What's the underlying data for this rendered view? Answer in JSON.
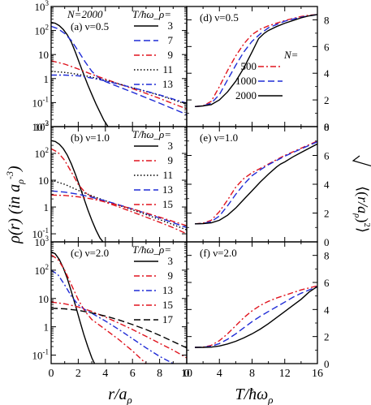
{
  "figure": {
    "left_ylabel": "ρ(r) (in a_ρ^-3)",
    "right_ylabel": "√⟨(r/a_ρ)²⟩",
    "bottom_left_xlabel": "r/a_ρ",
    "bottom_right_xlabel": "T/ħω_ρ",
    "colors": {
      "black": "#000000",
      "blue": "#1f2bd6",
      "red": "#e0141e"
    }
  },
  "chart_data": [
    {
      "id": "a",
      "type": "line",
      "yscale": "log",
      "title": "N=2000",
      "panel_label": "(a) ν=0.5",
      "xlim": [
        0,
        10
      ],
      "ylim": [
        0.01,
        1000
      ],
      "xticks": [
        0,
        2,
        4,
        6,
        8,
        10
      ],
      "legend_title": "T/ħω_ρ=",
      "legend_position": "top-right",
      "series": [
        {
          "name": "3",
          "color": "#000000",
          "dash": "solid",
          "x": [
            0,
            0.3,
            0.6,
            0.9,
            1.2,
            1.5,
            1.8,
            2.1,
            2.4,
            2.7,
            3.0,
            3.3,
            3.6,
            3.9,
            4.2,
            4.5
          ],
          "y": [
            220,
            200,
            160,
            110,
            65,
            32,
            12,
            4.2,
            1.5,
            0.55,
            0.22,
            0.09,
            0.04,
            0.018,
            0.01,
            0.007
          ]
        },
        {
          "name": "7",
          "color": "#1f2bd6",
          "dash": "dash",
          "x": [
            0,
            0.5,
            1,
            1.5,
            2,
            2.5,
            3,
            3.5,
            4,
            5,
            6,
            7,
            8,
            9,
            10
          ],
          "y": [
            150,
            120,
            75,
            38,
            14,
            5,
            2,
            1.1,
            0.75,
            0.45,
            0.27,
            0.16,
            0.095,
            0.055,
            0.032
          ]
        },
        {
          "name": "9",
          "color": "#e0141e",
          "dash": "dashdot",
          "x": [
            0,
            1,
            2,
            3,
            4,
            5,
            6,
            7,
            8,
            9,
            10
          ],
          "y": [
            5.5,
            4,
            2.5,
            1.5,
            0.95,
            0.6,
            0.38,
            0.24,
            0.15,
            0.09,
            0.055
          ]
        },
        {
          "name": "11",
          "color": "#000000",
          "dash": "dot",
          "x": [
            0,
            1,
            2,
            3,
            4,
            5,
            6,
            7,
            8,
            9,
            10
          ],
          "y": [
            2.0,
            1.8,
            1.5,
            1.15,
            0.85,
            0.6,
            0.42,
            0.29,
            0.2,
            0.13,
            0.085
          ]
        },
        {
          "name": "13",
          "color": "#1f2bd6",
          "dash": "dashdot",
          "x": [
            0,
            1,
            2,
            3,
            4,
            5,
            6,
            7,
            8,
            9,
            10
          ],
          "y": [
            1.4,
            1.4,
            1.3,
            1.05,
            0.8,
            0.58,
            0.42,
            0.3,
            0.21,
            0.14,
            0.095
          ]
        }
      ]
    },
    {
      "id": "b",
      "type": "line",
      "yscale": "log",
      "panel_label": "(b) ν=1.0",
      "xlim": [
        0,
        10
      ],
      "ylim": [
        0.05,
        1000
      ],
      "xticks": [
        0,
        2,
        4,
        6,
        8,
        10
      ],
      "legend_title": "T/ħω_ρ=",
      "legend_position": "top-right",
      "series": [
        {
          "name": "3",
          "color": "#000000",
          "dash": "solid",
          "x": [
            0,
            0.3,
            0.6,
            0.9,
            1.2,
            1.5,
            1.8,
            2.1,
            2.4,
            2.7,
            3.0,
            3.3,
            3.6,
            3.9,
            4.2
          ],
          "y": [
            300,
            280,
            220,
            150,
            85,
            40,
            16,
            6,
            2.2,
            0.8,
            0.32,
            0.14,
            0.07,
            0.045,
            0.03
          ]
        },
        {
          "name": "9",
          "color": "#e0141e",
          "dash": "dashdot",
          "x": [
            0,
            0.5,
            1,
            1.5,
            2,
            2.5,
            3,
            4,
            5,
            6,
            7,
            8,
            9,
            10
          ],
          "y": [
            150,
            110,
            55,
            20,
            7,
            3.5,
            2.4,
            1.5,
            1.0,
            0.65,
            0.42,
            0.27,
            0.17,
            0.1
          ]
        },
        {
          "name": "11",
          "color": "#000000",
          "dash": "dot",
          "x": [
            0,
            1,
            2,
            3,
            4,
            5,
            6,
            7,
            8,
            9,
            10
          ],
          "y": [
            10,
            7,
            4.2,
            2.6,
            1.7,
            1.15,
            0.78,
            0.52,
            0.34,
            0.22,
            0.14
          ]
        },
        {
          "name": "13",
          "color": "#1f2bd6",
          "dash": "dash",
          "x": [
            0,
            1,
            2,
            3,
            4,
            5,
            6,
            7,
            8,
            9,
            10
          ],
          "y": [
            4.0,
            3.6,
            3.0,
            2.3,
            1.7,
            1.2,
            0.85,
            0.58,
            0.39,
            0.26,
            0.17
          ]
        },
        {
          "name": "15",
          "color": "#e0141e",
          "dash": "dashdot",
          "x": [
            0,
            1,
            2,
            3,
            4,
            5,
            6,
            7,
            8,
            9,
            10
          ],
          "y": [
            2.8,
            2.7,
            2.4,
            2.0,
            1.55,
            1.15,
            0.85,
            0.6,
            0.42,
            0.29,
            0.2
          ]
        }
      ]
    },
    {
      "id": "c",
      "type": "line",
      "yscale": "log",
      "panel_label": "(c) ν=2.0",
      "xlim": [
        0,
        10
      ],
      "ylim": [
        0.05,
        1000
      ],
      "xticks": [
        0,
        2,
        4,
        6,
        8,
        10
      ],
      "legend_title": "T/ħω_ρ=",
      "legend_position": "top-right",
      "series": [
        {
          "name": "3",
          "color": "#000000",
          "dash": "solid",
          "x": [
            0,
            0.3,
            0.6,
            0.9,
            1.2,
            1.5,
            1.8,
            2.1,
            2.4,
            2.7,
            3.0,
            3.3
          ],
          "y": [
            450,
            380,
            240,
            120,
            50,
            17,
            5.5,
            1.7,
            0.55,
            0.2,
            0.08,
            0.04
          ]
        },
        {
          "name": "9",
          "color": "#e0141e",
          "dash": "dashdot",
          "x": [
            0,
            0.5,
            1,
            1.5,
            2,
            2.5,
            3,
            4,
            5,
            6,
            7
          ],
          "y": [
            350,
            240,
            100,
            30,
            9,
            3.5,
            1.8,
            0.8,
            0.35,
            0.14,
            0.05
          ]
        },
        {
          "name": "13",
          "color": "#1f2bd6",
          "dash": "dashdot",
          "x": [
            0,
            0.5,
            1,
            1.5,
            2,
            2.5,
            3,
            4,
            5,
            6,
            7,
            8,
            9
          ],
          "y": [
            100,
            70,
            30,
            12,
            6,
            4,
            3,
            1.6,
            0.8,
            0.38,
            0.18,
            0.09,
            0.05
          ]
        },
        {
          "name": "15",
          "color": "#e0141e",
          "dash": "dashdot",
          "x": [
            0,
            1,
            2,
            3,
            4,
            5,
            6,
            7,
            8,
            9,
            10
          ],
          "y": [
            7.5,
            6.5,
            5,
            3.5,
            2.2,
            1.35,
            0.8,
            0.46,
            0.26,
            0.15,
            0.08
          ]
        },
        {
          "name": "17",
          "color": "#000000",
          "dash": "dash",
          "x": [
            0,
            1,
            2,
            3,
            4,
            5,
            6,
            7,
            8,
            9,
            10
          ],
          "y": [
            4.5,
            4.3,
            3.8,
            3.1,
            2.4,
            1.75,
            1.2,
            0.8,
            0.5,
            0.3,
            0.18
          ]
        }
      ]
    },
    {
      "id": "d",
      "type": "line",
      "yscale": "linear",
      "panel_label": "(d) ν=0.5",
      "xlim": [
        0,
        16
      ],
      "ylim": [
        0,
        9
      ],
      "yticks": [
        0,
        2,
        4,
        6,
        8
      ],
      "legend_title": "N=",
      "legend_position": "right",
      "series": [
        {
          "name": "500",
          "color": "#e0141e",
          "dash": "dashdot",
          "x": [
            1,
            2,
            3,
            4,
            5,
            6,
            7,
            8,
            9,
            10,
            11,
            12,
            13,
            14,
            15,
            16
          ],
          "y": [
            1.5,
            1.55,
            1.9,
            3.0,
            4.2,
            5.3,
            6.2,
            6.9,
            7.3,
            7.55,
            7.75,
            7.95,
            8.1,
            8.25,
            8.35,
            8.4
          ]
        },
        {
          "name": "1000",
          "color": "#1f2bd6",
          "dash": "dash",
          "x": [
            1,
            2,
            3,
            4,
            5,
            6,
            7,
            8,
            9,
            10,
            11,
            12,
            13,
            14,
            15,
            16
          ],
          "y": [
            1.5,
            1.55,
            1.75,
            2.4,
            3.5,
            4.6,
            5.6,
            6.4,
            6.95,
            7.4,
            7.65,
            7.9,
            8.05,
            8.2,
            8.3,
            8.4
          ]
        },
        {
          "name": "2000",
          "color": "#000000",
          "dash": "solid",
          "x": [
            1,
            2,
            3,
            4,
            5,
            6,
            7,
            8,
            8.8,
            9.5,
            10,
            11,
            12,
            13,
            14,
            15,
            16
          ],
          "y": [
            1.5,
            1.55,
            1.65,
            2.0,
            2.6,
            3.4,
            4.4,
            5.6,
            6.6,
            7.0,
            7.2,
            7.5,
            7.75,
            7.95,
            8.15,
            8.3,
            8.4
          ]
        }
      ]
    },
    {
      "id": "e",
      "type": "line",
      "yscale": "linear",
      "panel_label": "(e) ν=1.0",
      "xlim": [
        0,
        16
      ],
      "ylim": [
        0,
        8
      ],
      "yticks": [
        0,
        2,
        4,
        6,
        8
      ],
      "series": [
        {
          "name": "500",
          "color": "#e0141e",
          "dash": "dashdot",
          "x": [
            1,
            2,
            3,
            4,
            5,
            6,
            7,
            8,
            9,
            10,
            11,
            12,
            13,
            14,
            15,
            16
          ],
          "y": [
            1.25,
            1.3,
            1.5,
            2.1,
            2.9,
            3.8,
            4.4,
            4.8,
            5.1,
            5.4,
            5.7,
            6.0,
            6.25,
            6.5,
            6.75,
            7.0
          ]
        },
        {
          "name": "1000",
          "color": "#1f2bd6",
          "dash": "dash",
          "x": [
            1,
            2,
            3,
            4,
            5,
            6,
            7,
            8,
            9,
            10,
            11,
            12,
            13,
            14,
            15,
            16
          ],
          "y": [
            1.25,
            1.28,
            1.4,
            1.8,
            2.5,
            3.3,
            4.0,
            4.6,
            5.0,
            5.35,
            5.65,
            5.95,
            6.2,
            6.45,
            6.7,
            6.95
          ]
        },
        {
          "name": "2000",
          "color": "#000000",
          "dash": "solid",
          "x": [
            1,
            2,
            3,
            4,
            5,
            6,
            7,
            8,
            9,
            10,
            11,
            11.5,
            12,
            13,
            14,
            15,
            16
          ],
          "y": [
            1.25,
            1.27,
            1.32,
            1.5,
            1.85,
            2.35,
            2.95,
            3.55,
            4.15,
            4.7,
            5.2,
            5.4,
            5.55,
            5.9,
            6.2,
            6.5,
            6.8
          ]
        }
      ]
    },
    {
      "id": "f",
      "type": "line",
      "yscale": "linear",
      "panel_label": "(f) ν=2.0",
      "xlim": [
        0,
        16
      ],
      "ylim": [
        0,
        9
      ],
      "xticks": [
        0,
        4,
        8,
        12,
        16
      ],
      "yticks": [
        0,
        2,
        4,
        6,
        8
      ],
      "series": [
        {
          "name": "500",
          "color": "#e0141e",
          "dash": "dashdot",
          "x": [
            1,
            2,
            3,
            4,
            5,
            6,
            7,
            8,
            9,
            10,
            11,
            12,
            13,
            14,
            15,
            16
          ],
          "y": [
            1.2,
            1.22,
            1.35,
            1.7,
            2.2,
            2.8,
            3.4,
            3.9,
            4.3,
            4.6,
            4.85,
            5.05,
            5.25,
            5.45,
            5.6,
            5.75
          ]
        },
        {
          "name": "1000",
          "color": "#1f2bd6",
          "dash": "dash",
          "x": [
            1,
            2,
            3,
            4,
            5,
            6,
            7,
            8,
            9,
            10,
            11,
            12,
            13,
            14,
            15,
            16
          ],
          "y": [
            1.2,
            1.21,
            1.28,
            1.48,
            1.8,
            2.2,
            2.65,
            3.1,
            3.5,
            3.85,
            4.2,
            4.55,
            4.9,
            5.2,
            5.45,
            5.7
          ]
        },
        {
          "name": "2000",
          "color": "#000000",
          "dash": "solid",
          "x": [
            1,
            2,
            3,
            4,
            5,
            6,
            7,
            8,
            9,
            10,
            11,
            12,
            13,
            14,
            15,
            15.5,
            16
          ],
          "y": [
            1.2,
            1.2,
            1.22,
            1.3,
            1.45,
            1.65,
            1.9,
            2.2,
            2.55,
            2.95,
            3.4,
            3.85,
            4.3,
            4.75,
            5.3,
            5.5,
            5.7
          ]
        }
      ]
    }
  ]
}
